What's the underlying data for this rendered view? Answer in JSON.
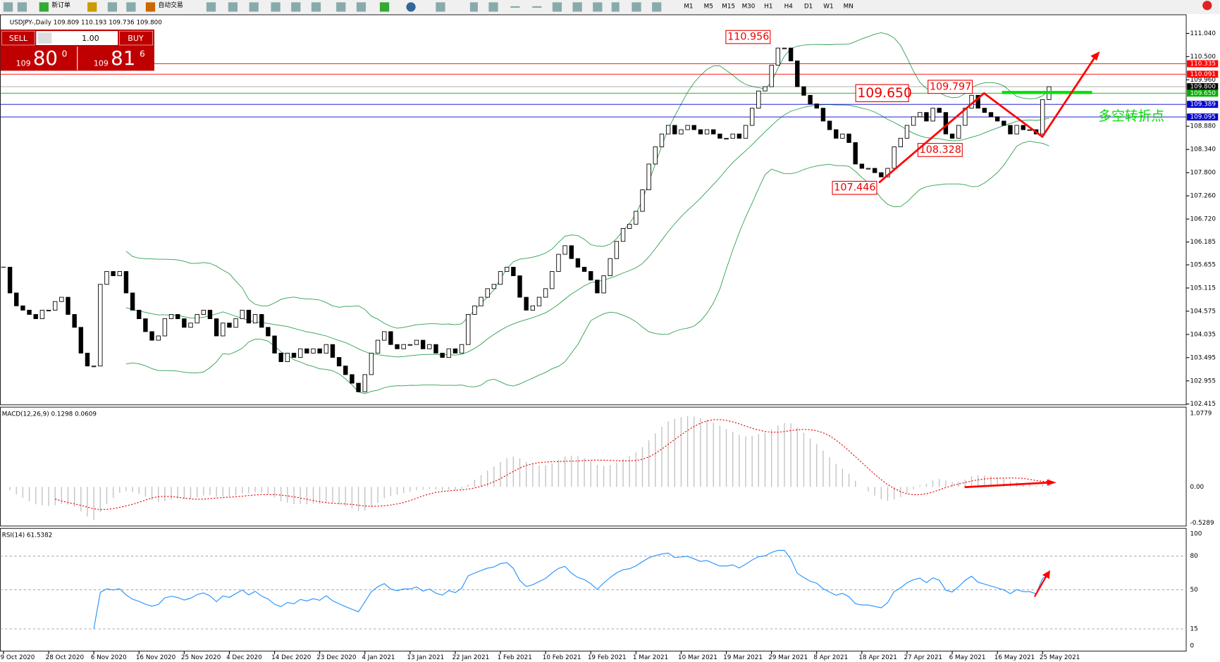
{
  "toolbar": {
    "new_order": "新订单",
    "auto_trading": "自动交易",
    "timeframes": [
      "M1",
      "M5",
      "M15",
      "M30",
      "H1",
      "H4",
      "D1",
      "W1",
      "MN"
    ]
  },
  "symbol_header": "USDJPY-,Daily  109.809 110.193 109.736 109.800",
  "trade_panel": {
    "sell": "SELL",
    "buy": "BUY",
    "lots": "1.00",
    "bid": {
      "big": "109",
      "pips": "80",
      "frac": "0"
    },
    "ask": {
      "big": "109",
      "pips": "81",
      "frac": "6"
    }
  },
  "price": {
    "ylim": [
      102.415,
      111.04
    ],
    "yticks": [
      {
        "value": 111.04,
        "label": "111.040"
      },
      {
        "value": 110.5,
        "label": "110.500"
      },
      {
        "value": 109.96,
        "label": "109.960"
      },
      {
        "value": 108.88,
        "label": "108.880"
      },
      {
        "value": 108.34,
        "label": "108.340"
      },
      {
        "value": 107.8,
        "label": "107.800"
      },
      {
        "value": 107.26,
        "label": "107.260"
      },
      {
        "value": 106.72,
        "label": "106.720"
      },
      {
        "value": 106.185,
        "label": "106.185"
      },
      {
        "value": 105.655,
        "label": "105.655"
      },
      {
        "value": 105.115,
        "label": "105.115"
      },
      {
        "value": 104.575,
        "label": "104.575"
      },
      {
        "value": 104.035,
        "label": "104.035"
      },
      {
        "value": 103.495,
        "label": "103.495"
      },
      {
        "value": 102.955,
        "label": "102.955"
      },
      {
        "value": 102.415,
        "label": "102.415"
      }
    ],
    "levels": [
      {
        "value": 110.335,
        "label": "110.335",
        "color": "#ff0000"
      },
      {
        "value": 110.091,
        "label": "110.091",
        "color": "#ff0000"
      },
      {
        "value": 109.8,
        "label": "109.800",
        "color": "#000000"
      },
      {
        "value": 109.65,
        "label": "109.650",
        "color": "#00b000"
      },
      {
        "value": 109.389,
        "label": "109.389",
        "color": "#0000cd"
      },
      {
        "value": 109.095,
        "label": "109.095",
        "color": "#0000cd"
      }
    ],
    "closes": [
      105.6,
      105.0,
      104.7,
      104.6,
      104.5,
      104.4,
      104.6,
      104.6,
      104.8,
      104.9,
      104.5,
      104.2,
      103.6,
      103.3,
      103.3,
      105.2,
      105.5,
      105.4,
      105.5,
      105.0,
      104.6,
      104.4,
      104.1,
      103.9,
      104.0,
      104.4,
      104.5,
      104.4,
      104.2,
      104.3,
      104.5,
      104.6,
      104.4,
      104.0,
      104.3,
      104.2,
      104.4,
      104.6,
      104.3,
      104.5,
      104.2,
      104.0,
      103.6,
      103.4,
      103.6,
      103.5,
      103.7,
      103.6,
      103.7,
      103.6,
      103.8,
      103.5,
      103.3,
      103.1,
      102.9,
      102.7,
      103.1,
      103.6,
      103.9,
      104.1,
      103.8,
      103.7,
      103.8,
      103.8,
      103.9,
      103.7,
      103.8,
      103.6,
      103.5,
      103.7,
      103.6,
      103.8,
      104.5,
      104.7,
      104.9,
      105.1,
      105.2,
      105.5,
      105.6,
      105.4,
      104.9,
      104.6,
      104.7,
      104.9,
      105.1,
      105.5,
      105.9,
      106.1,
      105.8,
      105.6,
      105.5,
      105.3,
      105.0,
      105.4,
      105.8,
      106.2,
      106.5,
      106.6,
      106.9,
      107.4,
      108.0,
      108.4,
      108.7,
      108.9,
      108.7,
      108.8,
      108.9,
      108.8,
      108.7,
      108.8,
      108.7,
      108.6,
      108.6,
      108.7,
      108.6,
      108.9,
      109.3,
      109.7,
      109.8,
      110.3,
      110.7,
      110.7,
      110.4,
      109.8,
      109.6,
      109.4,
      109.3,
      109.0,
      108.8,
      108.6,
      108.7,
      108.5,
      108.0,
      107.9,
      107.9,
      107.8,
      107.7,
      107.9,
      108.4,
      108.6,
      108.9,
      109.1,
      109.2,
      109.0,
      109.3,
      109.2,
      108.7,
      108.6,
      108.9,
      109.3,
      109.6,
      109.3,
      109.2,
      109.1,
      109.0,
      108.9,
      108.7,
      108.9,
      108.8,
      108.8,
      108.7,
      109.5,
      109.8
    ],
    "annotations": [
      {
        "value": 110.956,
        "label": "110.956"
      },
      {
        "value": 109.65,
        "label": "109.650"
      },
      {
        "value": 109.797,
        "label": "109.797"
      },
      {
        "value": 108.328,
        "label": "108.328"
      },
      {
        "value": 107.446,
        "label": "107.446"
      }
    ],
    "note": "多空转折点"
  },
  "macd": {
    "label": "MACD(12,26,9) 0.1298 0.0609",
    "ylim": [
      -0.5289,
      1.0779
    ],
    "yticks": [
      {
        "value": 1.0779,
        "label": "1.0779"
      },
      {
        "value": 0,
        "label": "0.00"
      },
      {
        "value": -0.5289,
        "label": "-0.5289"
      }
    ]
  },
  "rsi": {
    "label": "RSI(14) 61.5382",
    "ylim": [
      0,
      100
    ],
    "yticks": [
      100,
      80,
      50,
      15,
      0
    ],
    "levels": [
      80,
      50,
      15
    ]
  },
  "dates": [
    "9 Oct 2020",
    "28 Oct 2020",
    "6 Nov 2020",
    "16 Nov 2020",
    "25 Nov 2020",
    "4 Dec 2020",
    "14 Dec 2020",
    "23 Dec 2020",
    "4 Jan 2021",
    "13 Jan 2021",
    "22 Jan 2021",
    "1 Feb 2021",
    "10 Feb 2021",
    "19 Feb 2021",
    "1 Mar 2021",
    "10 Mar 2021",
    "19 Mar 2021",
    "29 Mar 2021",
    "8 Apr 2021",
    "18 Apr 2021",
    "27 Apr 2021",
    "6 May 2021",
    "16 May 2021",
    "25 May 2021"
  ]
}
